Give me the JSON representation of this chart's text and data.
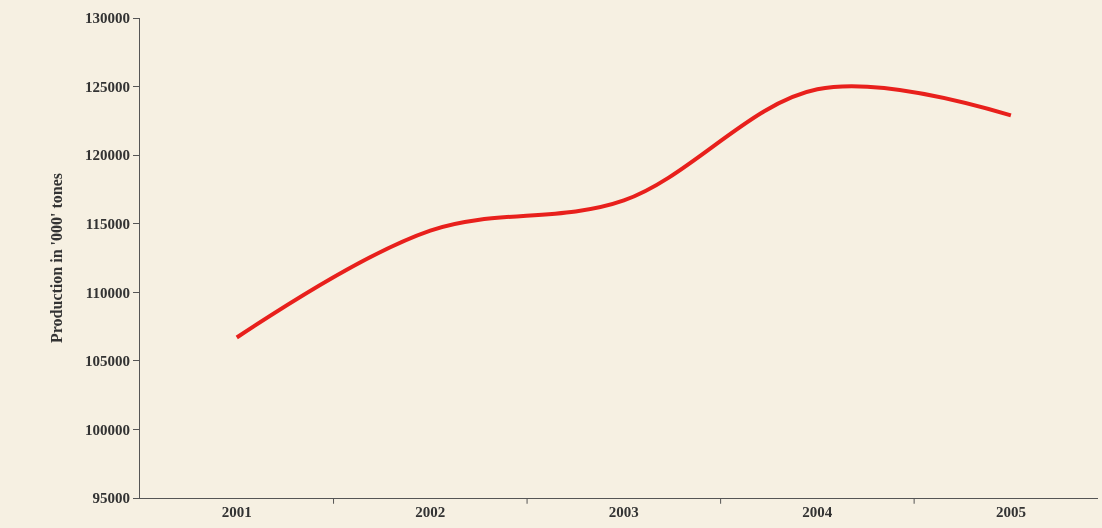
{
  "chart_data": {
    "type": "line",
    "ylabel": "Production in '000' tones",
    "categories": [
      "2001",
      "2002",
      "2003",
      "2004",
      "2005"
    ],
    "series": [
      {
        "color": "#e8201c",
        "values": [
          106700,
          114500,
          116700,
          124800,
          122900
        ]
      }
    ],
    "ylim": [
      95000,
      130000
    ],
    "yticks": [
      95000,
      100000,
      105000,
      110000,
      115000,
      120000,
      125000,
      130000
    ],
    "grid": false,
    "marker": "none",
    "line_style": "solid"
  }
}
